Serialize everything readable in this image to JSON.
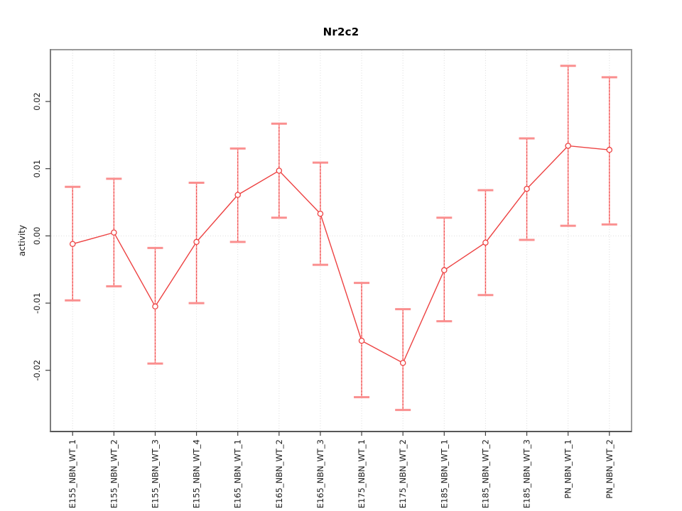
{
  "title": "Nr2c2",
  "chart_data": {
    "type": "line",
    "title": "Nr2c2",
    "xlabel": "",
    "ylabel": "activity",
    "categories": [
      "E155_NBN_WT_1",
      "E155_NBN_WT_2",
      "E155_NBN_WT_3",
      "E155_NBN_WT_4",
      "E165_NBN_WT_1",
      "E165_NBN_WT_2",
      "E165_NBN_WT_3",
      "E175_NBN_WT_1",
      "E175_NBN_WT_2",
      "E185_NBN_WT_1",
      "E185_NBN_WT_2",
      "E185_NBN_WT_3",
      "PN_NBN_WT_1",
      "PN_NBN_WT_2"
    ],
    "series": [
      {
        "name": "mean_activity",
        "values": [
          -0.0012,
          0.0005,
          -0.0105,
          -0.0009,
          0.0061,
          0.0097,
          0.0033,
          -0.0156,
          -0.0189,
          -0.0051,
          -0.001,
          0.007,
          0.0134,
          0.0128
        ],
        "lower": [
          -0.0096,
          -0.0075,
          -0.019,
          -0.01,
          -0.0009,
          0.0027,
          -0.0043,
          -0.024,
          -0.0259,
          -0.0127,
          -0.0088,
          -0.0006,
          0.0015,
          0.0017
        ],
        "upper": [
          0.0073,
          0.0085,
          -0.0018,
          0.0079,
          0.013,
          0.0167,
          0.0109,
          -0.007,
          -0.0109,
          0.0027,
          0.0068,
          0.0145,
          0.0253,
          0.0236
        ]
      }
    ],
    "ylim": [
      -0.029,
      0.0276
    ],
    "yticks": [
      -0.02,
      -0.01,
      0,
      0.01,
      0.02
    ],
    "ytick_labels": [
      "-0.02",
      "-0.01",
      "0.00",
      "0.01",
      "0.02"
    ],
    "legend": "none",
    "marker": "open-circle",
    "grid": {
      "vertical": "dotted-per-category",
      "horizontal": "dotted-at-zero"
    }
  },
  "colors": {
    "series_red": "#ed4242",
    "error_bar_salmon": "#fa8f8f",
    "frame_gray": "#9b9b9b",
    "axis_dark": "#3f3f3f",
    "axis_left": "#707070",
    "grid_gray": "#dcdcdc",
    "text_black": "#1a1a1a",
    "background": "#ffffff"
  }
}
